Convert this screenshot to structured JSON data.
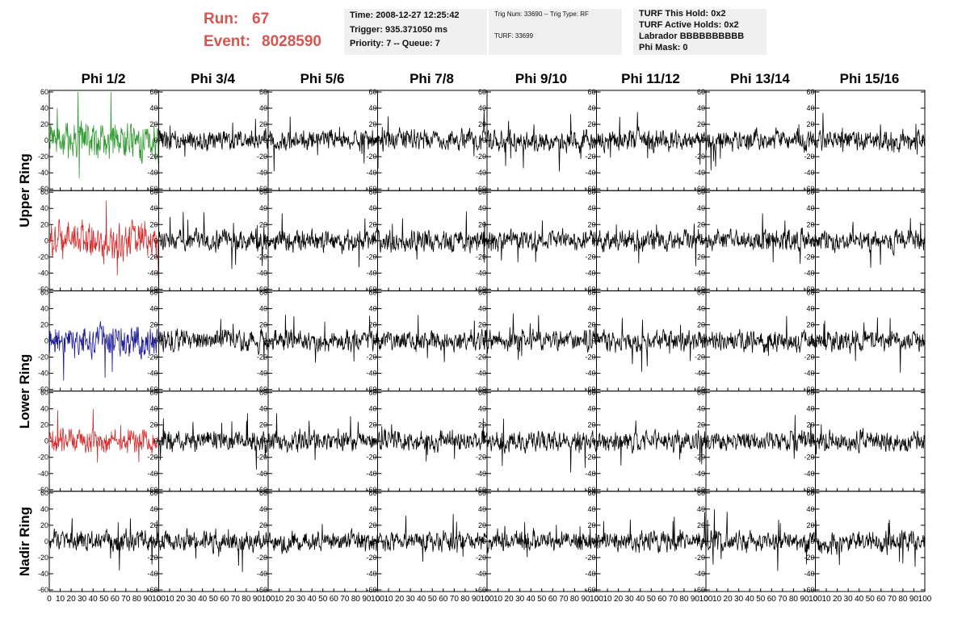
{
  "header": {
    "run_label": "Run:",
    "run_value": "67",
    "event_label": "Event:",
    "event_value": "8028590"
  },
  "info_box_1": {
    "time": "Time: 2008-12-27 12:25:42",
    "trigger": "Trigger: 935.371050 ms",
    "priority": "Priority: 7 -- Queue: 7"
  },
  "info_box_2": {
    "trig": "Trig Num: 33690 -- Trig Type: RF",
    "turf": "TURF: 33699"
  },
  "info_box_3": {
    "hold": "TURF This Hold: 0x2",
    "active": "TURF Active Holds: 0x2",
    "labrador": "Labrador BBBBBBBBBB",
    "phimask": "Phi Mask: 0"
  },
  "columns": [
    "Phi 1/2",
    "Phi 3/4",
    "Phi 5/6",
    "Phi 7/8",
    "Phi 9/10",
    "Phi 11/12",
    "Phi 13/14",
    "Phi 15/16"
  ],
  "rows": [
    "Upper Ring",
    "Upper Ring",
    "Lower Ring",
    "Lower Ring",
    "Nadir Ring"
  ],
  "row_labels": [
    {
      "text": "Upper Ring",
      "span": [
        0,
        1
      ]
    },
    {
      "text": "Lower Ring",
      "span": [
        2,
        3
      ]
    },
    {
      "text": "Nadir Ring",
      "span": [
        4,
        4
      ]
    }
  ],
  "colors": {
    "row0_col0": "#2e9a2e",
    "row1_col0": "#d42a2a",
    "row2_col0": "#1a1a9a",
    "row3_col0": "#d42a2a",
    "default": "#000000",
    "run_text": "#d9534f"
  },
  "chart_data": {
    "type": "line",
    "layout": "grid 5 rows x 8 columns of waveform panels",
    "xlim": [
      0,
      100
    ],
    "ylim": [
      -60,
      60
    ],
    "yticks": [
      -60,
      -40,
      -20,
      0,
      20,
      40,
      60
    ],
    "xticks": [
      0,
      10,
      20,
      30,
      40,
      50,
      60,
      70,
      80,
      90,
      100
    ],
    "samples_per_trace": 260,
    "amplitude_profile": {
      "row0_col0": 22,
      "row1_col0": 22,
      "row2_col0": 18,
      "row3_col0": 14,
      "default": 12
    },
    "note_series": "Each panel shows one noisy waveform trace; first column colored (green, red, blue, red), others black."
  }
}
